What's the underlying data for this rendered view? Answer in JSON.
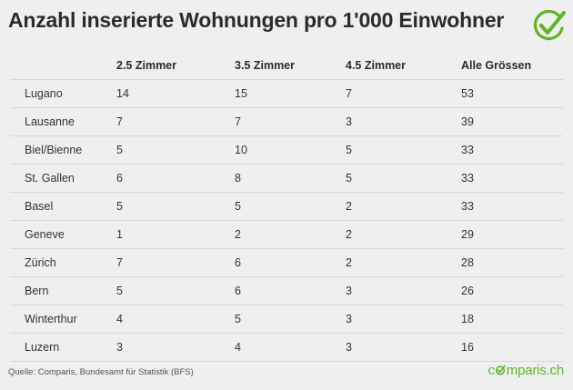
{
  "title": "Anzahl inserierte Wohnungen pro 1'000 Einwohner",
  "source": "Quelle: Comparis, Bundesamt für Statistik (BFS)",
  "brand": "comparis.ch",
  "logo_icon": "green-checkmark-circle-icon",
  "colors": {
    "accent": "#5fb42a",
    "background": "#efefef",
    "rule": "#d7d7d7"
  },
  "chart_data": {
    "type": "table",
    "columns": [
      "",
      "2.5 Zimmer",
      "3.5 Zimmer",
      "4.5 Zimmer",
      "Alle Grössen"
    ],
    "rows": [
      [
        "Lugano",
        "14",
        "15",
        "7",
        "53"
      ],
      [
        "Lausanne",
        "7",
        "7",
        "3",
        "39"
      ],
      [
        "Biel/Bienne",
        "5",
        "10",
        "5",
        "33"
      ],
      [
        "St. Gallen",
        "6",
        "8",
        "5",
        "33"
      ],
      [
        "Basel",
        "5",
        "5",
        "2",
        "33"
      ],
      [
        "Geneve",
        "1",
        "2",
        "2",
        "29"
      ],
      [
        "Zürich",
        "7",
        "6",
        "2",
        "28"
      ],
      [
        "Bern",
        "5",
        "6",
        "3",
        "26"
      ],
      [
        "Winterthur",
        "4",
        "5",
        "3",
        "18"
      ],
      [
        "Luzern",
        "3",
        "4",
        "3",
        "16"
      ]
    ]
  }
}
